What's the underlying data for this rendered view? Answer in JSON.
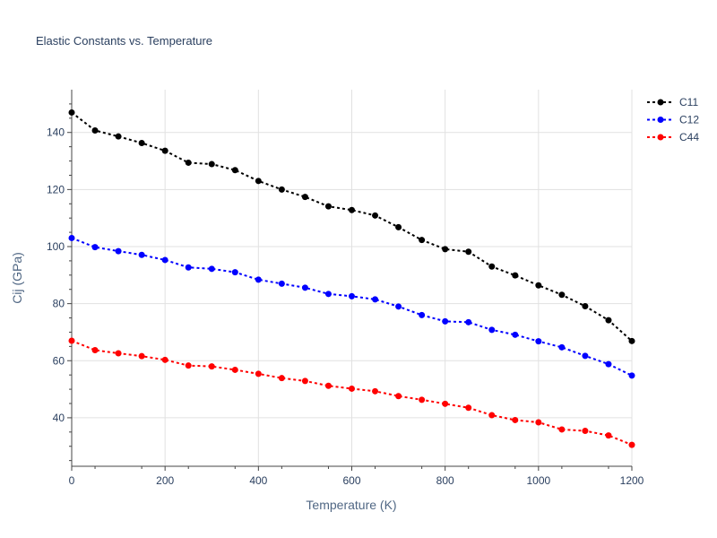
{
  "chart_data": {
    "type": "line",
    "title": "Elastic Constants vs. Temperature",
    "xlabel": "Temperature (K)",
    "ylabel": "Cij (GPa)",
    "xlim": [
      0,
      1200
    ],
    "ylim": [
      23,
      155
    ],
    "xticks": [
      0,
      200,
      400,
      600,
      800,
      1000,
      1200
    ],
    "yticks": [
      40,
      60,
      80,
      100,
      120,
      140
    ],
    "grid": true,
    "legend_position": "top-right",
    "x": [
      0,
      50,
      100,
      150,
      200,
      250,
      300,
      350,
      400,
      450,
      500,
      550,
      600,
      650,
      700,
      750,
      800,
      850,
      900,
      950,
      1000,
      1050,
      1100,
      1150,
      1200
    ],
    "series": [
      {
        "name": "C11",
        "color": "#000000",
        "values": [
          147,
          140.7,
          138.6,
          136.3,
          133.6,
          129.4,
          128.9,
          126.8,
          123,
          120,
          117.4,
          114.1,
          112.8,
          110.9,
          106.8,
          102.3,
          99.1,
          98.2,
          93,
          89.9,
          86.4,
          83.1,
          79.1,
          74.2,
          66.9
        ]
      },
      {
        "name": "C12",
        "color": "#0000ff",
        "values": [
          103,
          99.8,
          98.4,
          97.1,
          95.3,
          92.7,
          92.2,
          91,
          88.4,
          87,
          85.6,
          83.4,
          82.6,
          81.5,
          79,
          76,
          73.8,
          73.5,
          70.8,
          69.1,
          66.8,
          64.7,
          61.7,
          58.8,
          54.8
        ]
      },
      {
        "name": "C44",
        "color": "#ff0000",
        "values": [
          67,
          63.7,
          62.6,
          61.6,
          60.3,
          58.3,
          58,
          56.8,
          55.4,
          53.9,
          52.9,
          51.2,
          50.2,
          49.3,
          47.6,
          46.3,
          44.9,
          43.5,
          40.9,
          39.2,
          38.4,
          35.9,
          35.4,
          33.8,
          30.5
        ]
      }
    ]
  }
}
